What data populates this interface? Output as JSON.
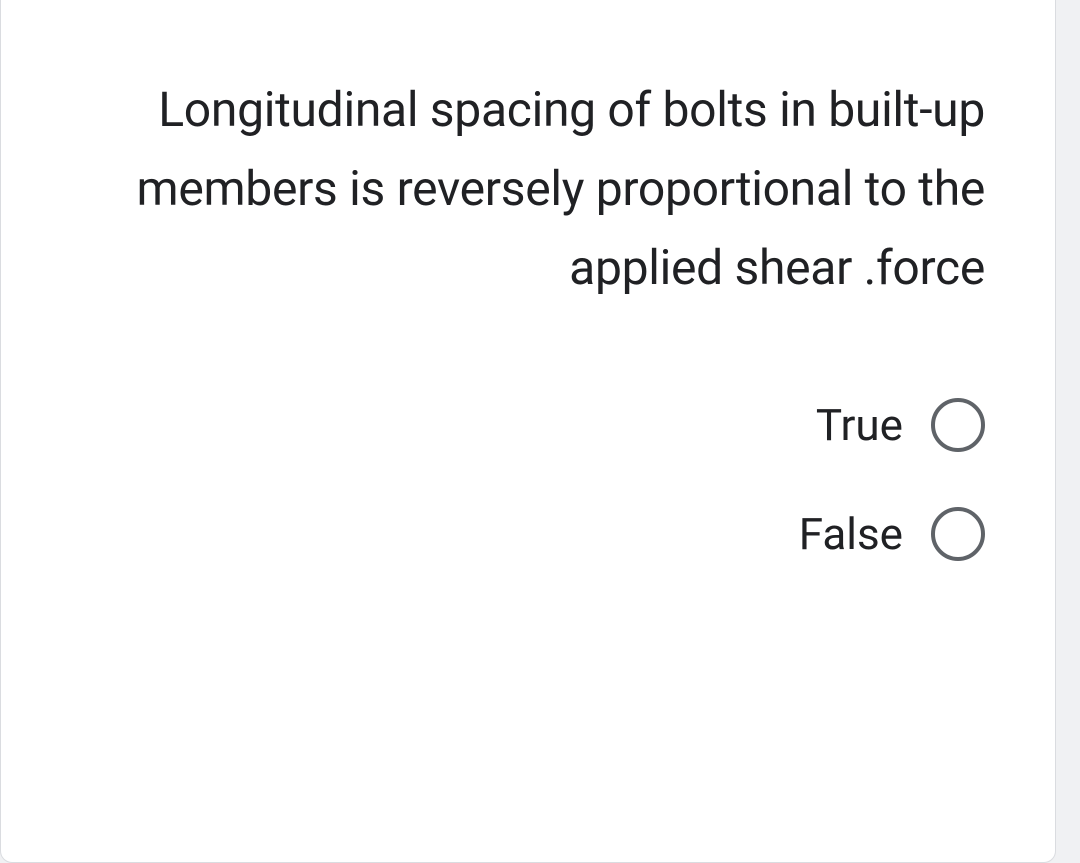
{
  "question": {
    "text": "Longitudinal spacing of bolts in built-up members is reversely proportional to the applied shear .force",
    "options": [
      {
        "label": "True"
      },
      {
        "label": "False"
      }
    ]
  },
  "styling": {
    "card_background": "#ffffff",
    "page_background": "#f0f1f3",
    "border_color": "#dadce0",
    "text_color": "#202124",
    "radio_border_color": "#5f6368",
    "question_fontsize": 48,
    "option_fontsize": 44,
    "radio_size": 54,
    "radio_border_width": 4
  }
}
